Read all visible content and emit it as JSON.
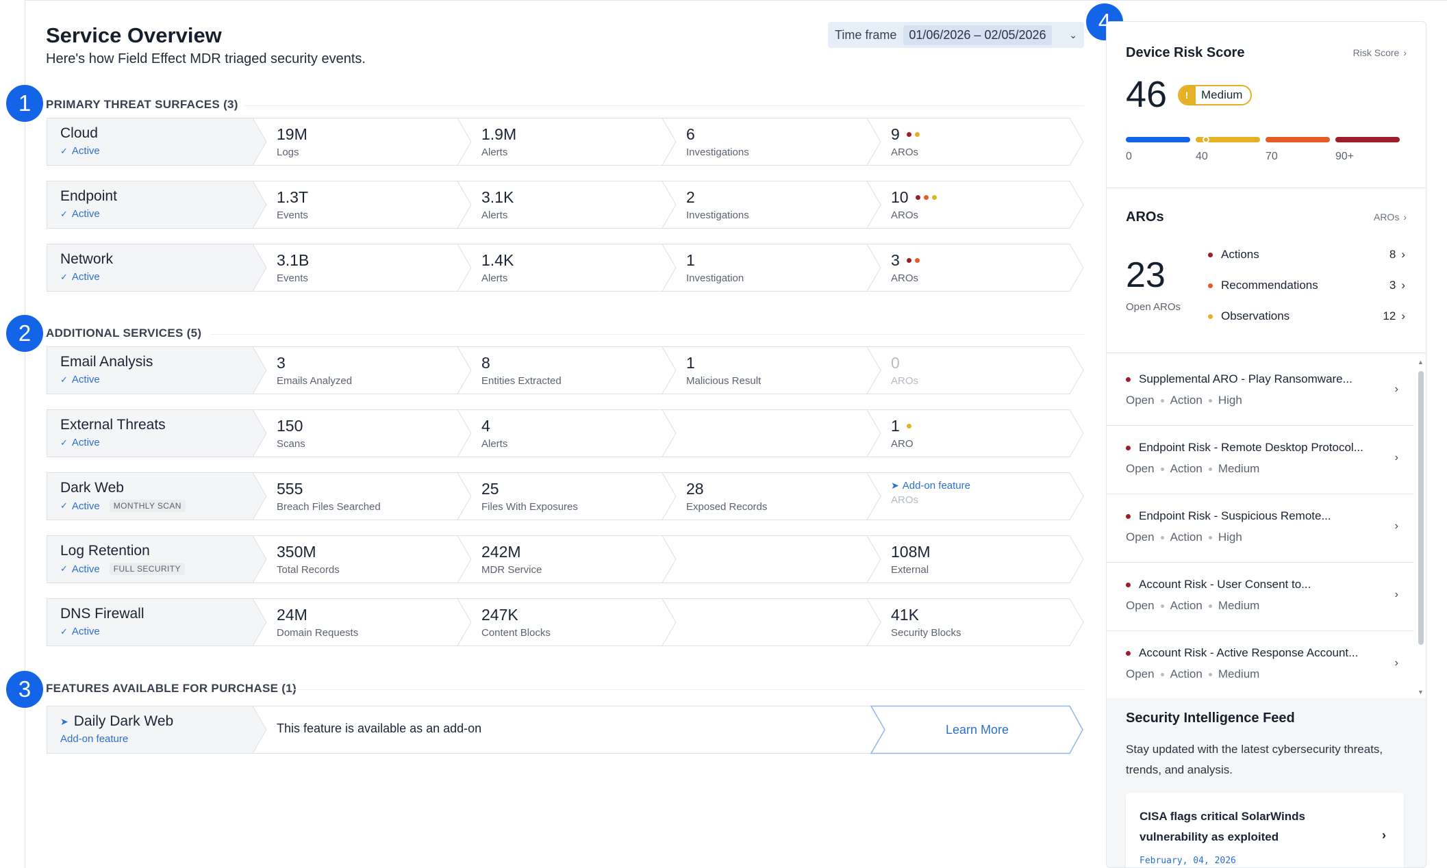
{
  "header": {
    "title": "Service Overview",
    "subtitle": "Here's how Field Effect MDR triaged security events.",
    "timeframe_label": "Time frame",
    "timeframe_value": "01/06/2026 – 02/05/2026"
  },
  "badges": [
    "1",
    "2",
    "3",
    "4"
  ],
  "sections": {
    "primary": "PRIMARY THREAT SURFACES (3)",
    "additional": "ADDITIONAL SERVICES (5)",
    "features": "FEATURES AVAILABLE FOR PURCHASE (1)"
  },
  "primary_rows": [
    {
      "name": "Cloud",
      "status": "Active",
      "cells": [
        {
          "value": "19M",
          "label": "Logs"
        },
        {
          "value": "1.9M",
          "label": "Alerts"
        },
        {
          "value": "6",
          "label": "Investigations"
        },
        {
          "value": "9",
          "label": "AROs"
        }
      ]
    },
    {
      "name": "Endpoint",
      "status": "Active",
      "cells": [
        {
          "value": "1.3T",
          "label": "Events"
        },
        {
          "value": "3.1K",
          "label": "Alerts"
        },
        {
          "value": "2",
          "label": "Investigations"
        },
        {
          "value": "10",
          "label": "AROs"
        }
      ]
    },
    {
      "name": "Network",
      "status": "Active",
      "cells": [
        {
          "value": "3.1B",
          "label": "Events"
        },
        {
          "value": "1.4K",
          "label": "Alerts"
        },
        {
          "value": "1",
          "label": "Investigation"
        },
        {
          "value": "3",
          "label": "AROs"
        }
      ]
    }
  ],
  "additional_rows": [
    {
      "name": "Email Analysis",
      "status": "Active",
      "cells": [
        {
          "value": "3",
          "label": "Emails Analyzed"
        },
        {
          "value": "8",
          "label": "Entities Extracted"
        },
        {
          "value": "1",
          "label": "Malicious Result"
        },
        {
          "value": "0",
          "label": "AROs"
        }
      ]
    },
    {
      "name": "External Threats",
      "status": "Active",
      "cells": [
        {
          "value": "150",
          "label": "Scans"
        },
        {
          "value": "4",
          "label": "Alerts"
        },
        {
          "value": "1",
          "label": "ARO"
        }
      ]
    },
    {
      "name": "Dark Web",
      "status": "Active",
      "tag": "MONTHLY SCAN",
      "cells": [
        {
          "value": "555",
          "label": "Breach Files Searched"
        },
        {
          "value": "25",
          "label": "Files With Exposures"
        },
        {
          "value": "28",
          "label": "Exposed Records"
        },
        {
          "value": "Add-on feature",
          "label": "AROs"
        }
      ]
    },
    {
      "name": "Log Retention",
      "status": "Active",
      "tag": "FULL SECURITY",
      "cells": [
        {
          "value": "350M",
          "label": "Total Records"
        },
        {
          "value": "242M",
          "label": "MDR Service"
        },
        {
          "value": "108M",
          "label": "External"
        }
      ]
    },
    {
      "name": "DNS Firewall",
      "status": "Active",
      "cells": [
        {
          "value": "24M",
          "label": "Domain Requests"
        },
        {
          "value": "247K",
          "label": "Content Blocks"
        },
        {
          "value": "41K",
          "label": "Security Blocks"
        }
      ]
    }
  ],
  "feature_row": {
    "name": "Daily Dark Web",
    "status": "Add-on feature",
    "text": "This feature is available as an add-on",
    "button": "Learn More"
  },
  "risk": {
    "title": "Device Risk Score",
    "link": "Risk Score",
    "score": "46",
    "level": "Medium",
    "scale_labels": [
      "0",
      "40",
      "70",
      "90+"
    ],
    "colors": {
      "low": "#1464e8",
      "medium": "#e6b024",
      "high": "#e55b25",
      "critical": "#9c1d2c"
    }
  },
  "aros": {
    "title": "AROs",
    "link": "AROs",
    "total": "23",
    "total_label": "Open AROs",
    "items": [
      {
        "label": "Actions",
        "count": "8"
      },
      {
        "label": "Recommendations",
        "count": "3"
      },
      {
        "label": "Observations",
        "count": "12"
      }
    ]
  },
  "aro_list": [
    {
      "title": "Supplemental ARO - Play Ransomware...",
      "state": "Open",
      "type": "Action",
      "severity": "High"
    },
    {
      "title": "Endpoint Risk - Remote Desktop Protocol...",
      "state": "Open",
      "type": "Action",
      "severity": "Medium"
    },
    {
      "title": "Endpoint Risk - Suspicious Remote...",
      "state": "Open",
      "type": "Action",
      "severity": "High"
    },
    {
      "title": "Account Risk - User Consent to...",
      "state": "Open",
      "type": "Action",
      "severity": "Medium"
    },
    {
      "title": "Account Risk - Active Response Account...",
      "state": "Open",
      "type": "Action",
      "severity": "Medium"
    }
  ],
  "feed": {
    "title": "Security Intelligence Feed",
    "description": "Stay updated with the latest cybersecurity threats, trends, and analysis.",
    "card_title": "CISA flags critical SolarWinds vulnerability as exploited",
    "card_date": "February, 04, 2026"
  }
}
